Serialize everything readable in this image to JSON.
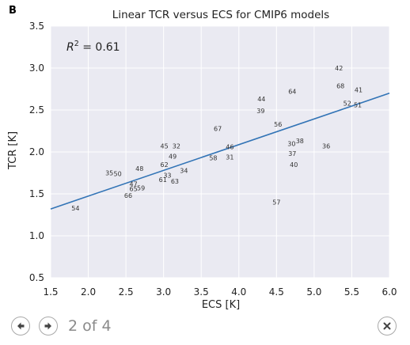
{
  "panel_label": "B",
  "annotation": {
    "text_prefix": "R",
    "text_sup": "2",
    "text_suffix": " = 0.61"
  },
  "pager": {
    "text": "2 of 4"
  },
  "icons": {
    "prev": "arrow-left-icon",
    "next": "arrow-right-icon",
    "close": "close-icon"
  },
  "colors": {
    "background": "#eaeaf2",
    "grid": "#ffffff",
    "fit_line": "#3274b6",
    "text": "#222222"
  },
  "chart_data": {
    "type": "scatter",
    "title": "Linear TCR versus ECS for CMIP6 models",
    "xlabel": "ECS [K]",
    "ylabel": "TCR [K]",
    "xlim": [
      1.5,
      6.0
    ],
    "ylim": [
      0.5,
      3.5
    ],
    "xticks": [
      "1.5",
      "2.0",
      "2.5",
      "3.0",
      "3.5",
      "4.0",
      "4.5",
      "5.0",
      "5.5",
      "6.0"
    ],
    "yticks": [
      "0.5",
      "1.0",
      "1.5",
      "2.0",
      "2.5",
      "3.0",
      "3.5"
    ],
    "grid": true,
    "fit_line": {
      "x": [
        1.5,
        6.0
      ],
      "y": [
        1.32,
        2.7
      ]
    },
    "points": [
      {
        "label": "54",
        "x": 1.83,
        "y": 1.33
      },
      {
        "label": "35",
        "x": 2.28,
        "y": 1.75
      },
      {
        "label": "50",
        "x": 2.39,
        "y": 1.74
      },
      {
        "label": "48",
        "x": 2.68,
        "y": 1.8
      },
      {
        "label": "47",
        "x": 2.6,
        "y": 1.62
      },
      {
        "label": "65",
        "x": 2.6,
        "y": 1.56
      },
      {
        "label": "59",
        "x": 2.7,
        "y": 1.57
      },
      {
        "label": "66",
        "x": 2.53,
        "y": 1.48
      },
      {
        "label": "45",
        "x": 3.01,
        "y": 2.07
      },
      {
        "label": "32",
        "x": 3.17,
        "y": 2.07
      },
      {
        "label": "49",
        "x": 3.12,
        "y": 1.95
      },
      {
        "label": "62",
        "x": 3.01,
        "y": 1.85
      },
      {
        "label": "34",
        "x": 3.27,
        "y": 1.78
      },
      {
        "label": "33",
        "x": 3.05,
        "y": 1.72
      },
      {
        "label": "61",
        "x": 2.99,
        "y": 1.67
      },
      {
        "label": "63",
        "x": 3.15,
        "y": 1.65
      },
      {
        "label": "67",
        "x": 3.72,
        "y": 2.28
      },
      {
        "label": "58",
        "x": 3.66,
        "y": 1.93
      },
      {
        "label": "46",
        "x": 3.88,
        "y": 2.06
      },
      {
        "label": "31",
        "x": 3.88,
        "y": 1.94
      },
      {
        "label": "44",
        "x": 4.3,
        "y": 2.63
      },
      {
        "label": "39",
        "x": 4.29,
        "y": 2.49
      },
      {
        "label": "64",
        "x": 4.71,
        "y": 2.72
      },
      {
        "label": "56",
        "x": 4.52,
        "y": 2.33
      },
      {
        "label": "30",
        "x": 4.7,
        "y": 2.1
      },
      {
        "label": "38",
        "x": 4.81,
        "y": 2.13
      },
      {
        "label": "37",
        "x": 4.71,
        "y": 1.98
      },
      {
        "label": "40",
        "x": 4.73,
        "y": 1.85
      },
      {
        "label": "57",
        "x": 4.5,
        "y": 1.4
      },
      {
        "label": "36",
        "x": 5.16,
        "y": 2.07
      },
      {
        "label": "42",
        "x": 5.33,
        "y": 3.0
      },
      {
        "label": "68",
        "x": 5.35,
        "y": 2.79
      },
      {
        "label": "41",
        "x": 5.59,
        "y": 2.74
      },
      {
        "label": "52",
        "x": 5.44,
        "y": 2.58
      },
      {
        "label": "51",
        "x": 5.58,
        "y": 2.56
      }
    ]
  }
}
